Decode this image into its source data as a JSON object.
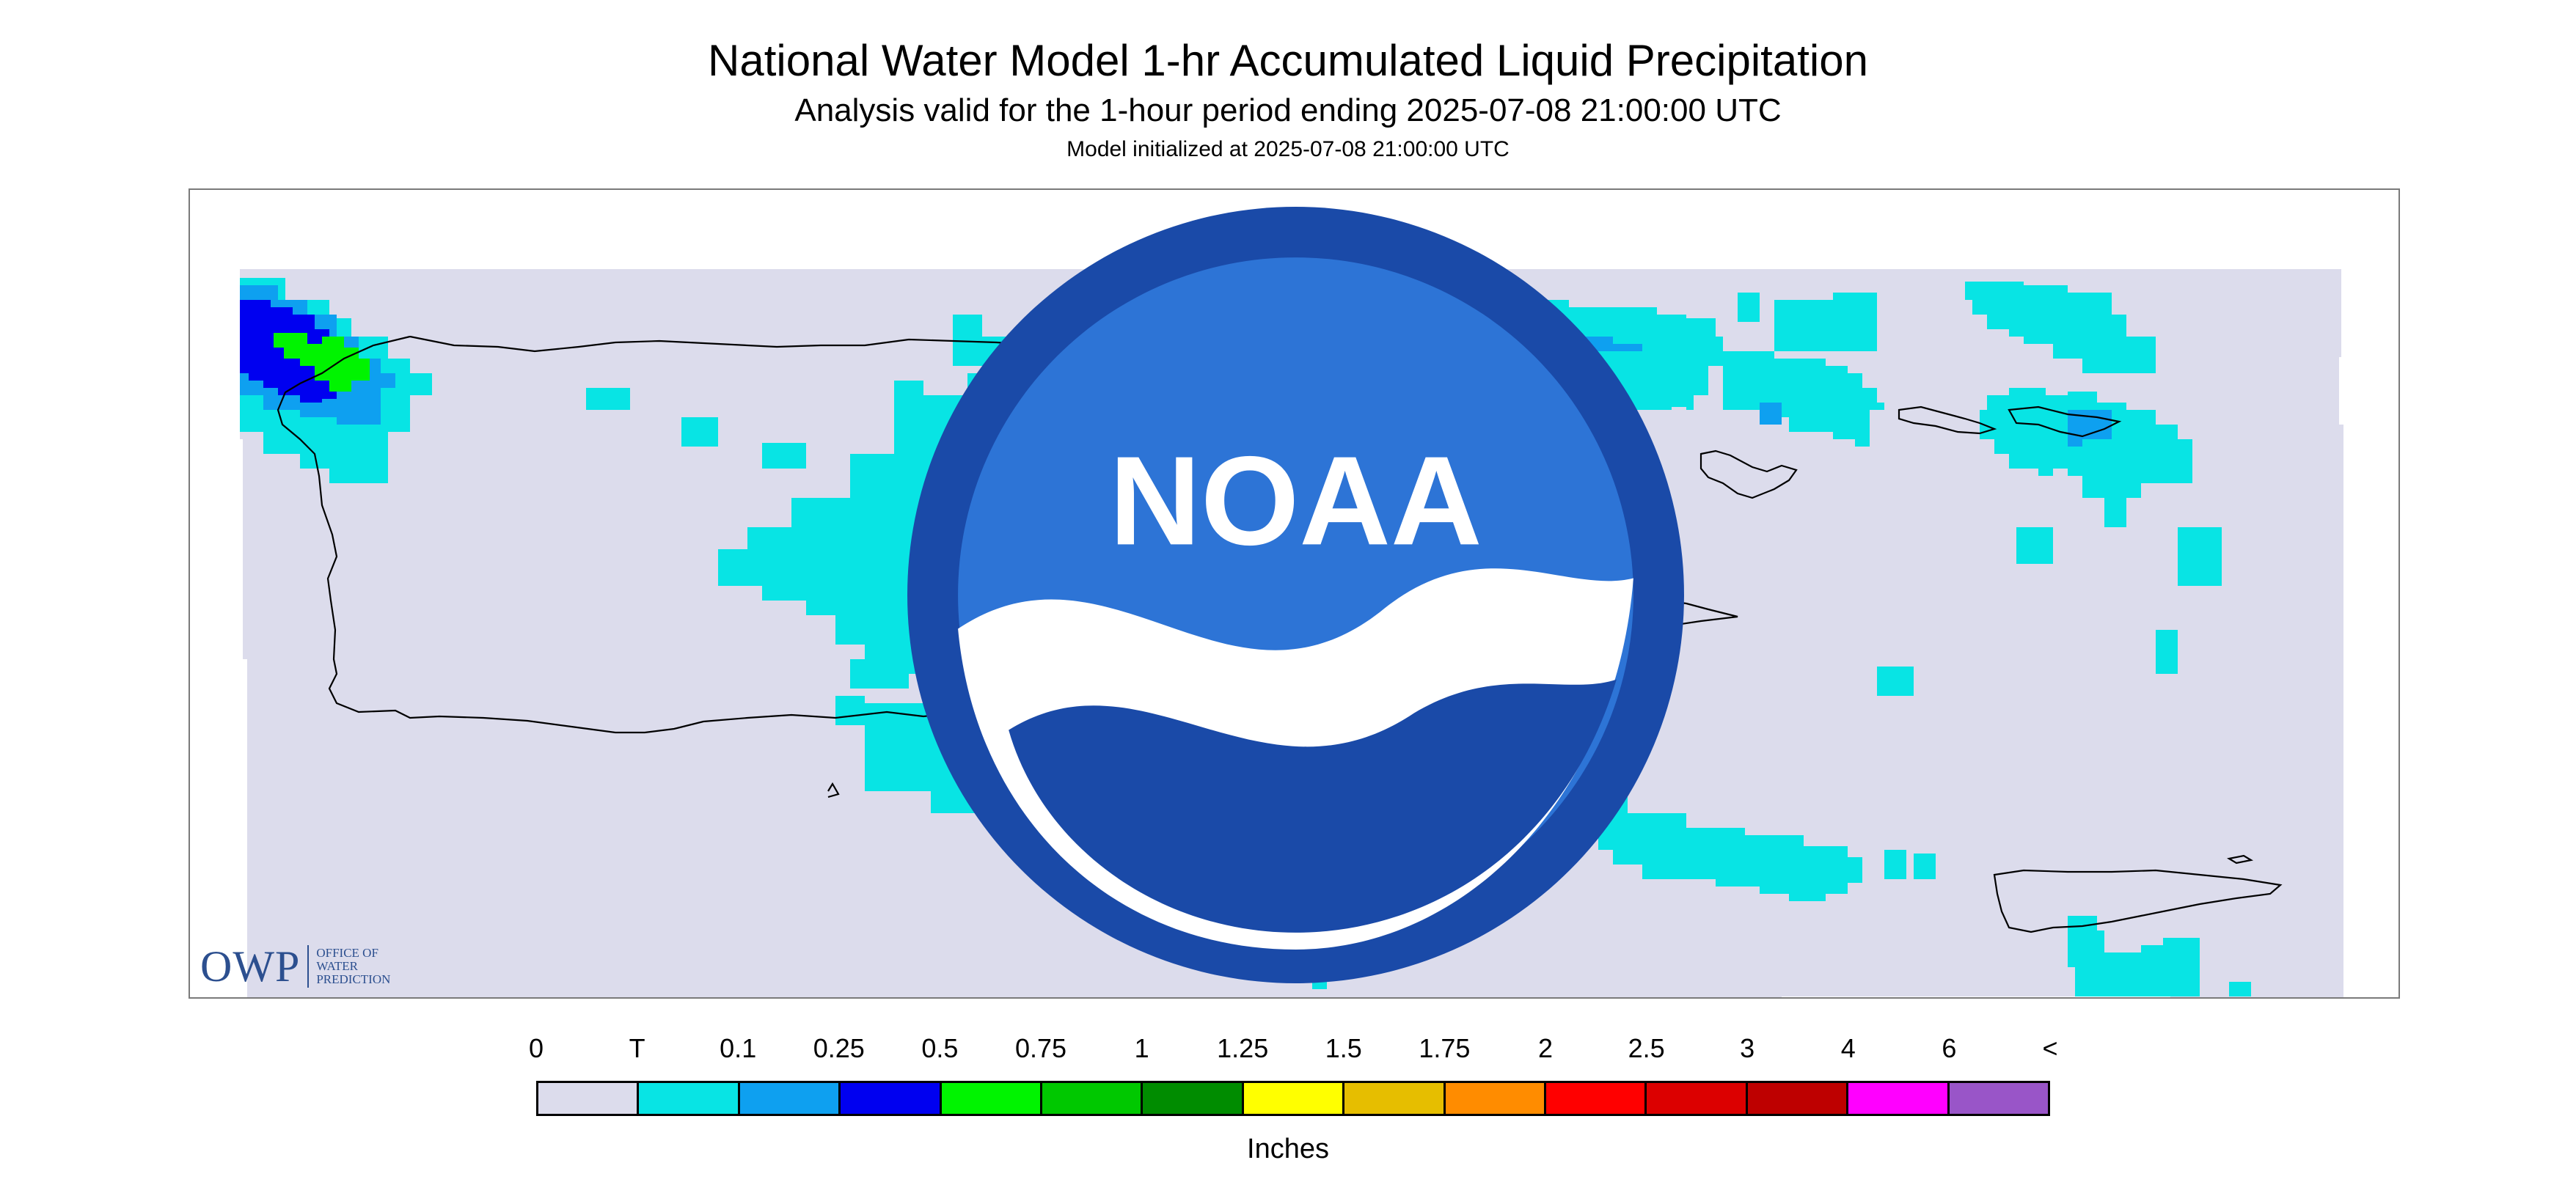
{
  "header": {
    "title": "National Water Model 1-hr Accumulated Liquid Precipitation",
    "subtitle": "Analysis valid for the 1-hour period ending 2025-07-08 21:00:00 UTC",
    "init": "Model initialized at 2025-07-08 21:00:00 UTC"
  },
  "map": {
    "background_color": "#dcdcec",
    "coastline_color": "#000000"
  },
  "logos": {
    "owp_big": "OWP",
    "owp_line1": "OFFICE OF",
    "owp_line2": "WATER",
    "owp_line3": "PREDICTION",
    "noaa": "NOAA"
  },
  "legend": {
    "labels": [
      "0",
      "T",
      "0.1",
      "0.25",
      "0.5",
      "0.75",
      "1",
      "1.25",
      "1.5",
      "1.75",
      "2",
      "2.5",
      "3",
      "4",
      "6",
      "<"
    ],
    "colors": [
      "#dcdcec",
      "#08e4e4",
      "#0ea0f0",
      "#0000f0",
      "#00f400",
      "#00c800",
      "#008c00",
      "#ffff00",
      "#e6be00",
      "#ff8c00",
      "#ff0000",
      "#dc0000",
      "#be0000",
      "#ff00ff",
      "#9955c8"
    ],
    "units": "Inches"
  }
}
